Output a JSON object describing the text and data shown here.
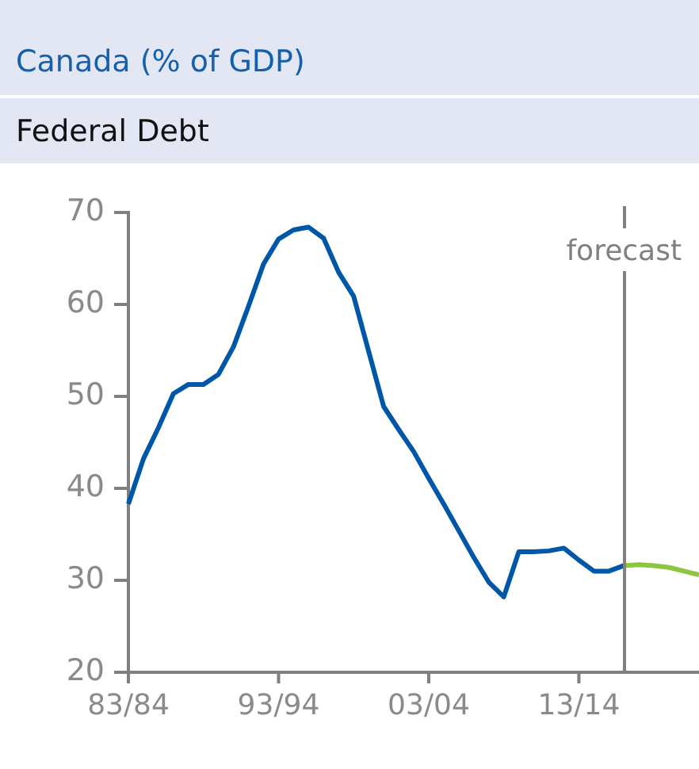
{
  "chart_data": {
    "type": "line",
    "title": "Canada (% of GDP)",
    "subtitle": "Federal Debt",
    "categories": [
      "83/84",
      null,
      null,
      null,
      null,
      null,
      null,
      null,
      null,
      null,
      "93/94",
      null,
      null,
      null,
      null,
      null,
      null,
      null,
      null,
      null,
      "03/04",
      null,
      null,
      null,
      null,
      null,
      null,
      null,
      null,
      null,
      "13/14",
      null,
      null,
      null,
      null,
      null,
      null,
      null,
      null
    ],
    "series": [
      {
        "color": "#0057a8",
        "values": [
          38.3,
          43.2,
          46.6,
          50.3,
          51.3,
          51.3,
          52.4,
          55.4,
          59.8,
          64.4,
          67.1,
          68.1,
          68.4,
          67.2,
          63.5,
          60.9,
          54.9,
          48.9,
          46.4,
          44.0,
          41.1,
          38.3,
          35.4,
          32.5,
          29.8,
          28.2,
          33.1,
          33.1,
          33.2,
          33.5,
          32.2,
          31.0,
          31.0,
          31.6,
          null,
          null,
          null,
          null,
          null
        ]
      },
      {
        "color": "#8cc63f",
        "values": [
          null,
          null,
          null,
          null,
          null,
          null,
          null,
          null,
          null,
          null,
          null,
          null,
          null,
          null,
          null,
          null,
          null,
          null,
          null,
          null,
          null,
          null,
          null,
          null,
          null,
          null,
          null,
          null,
          null,
          null,
          null,
          null,
          null,
          31.6,
          31.7,
          31.6,
          31.4,
          31.0,
          30.6
        ]
      }
    ],
    "ylim": [
      20,
      70
    ],
    "yticks": [
      20,
      30,
      40,
      50,
      60,
      70
    ],
    "annotations": [
      "forecast"
    ],
    "grid": false,
    "legend": false,
    "marker": "none",
    "line_style": "solid"
  }
}
